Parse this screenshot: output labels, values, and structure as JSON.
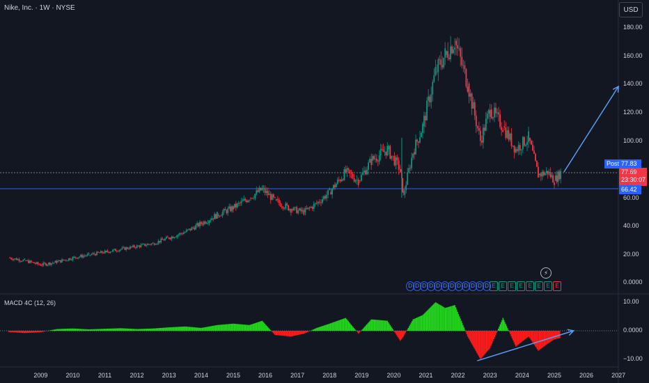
{
  "header": {
    "title": "Nike, Inc. · 1W · NYSE",
    "currency": "USD"
  },
  "price_tags": {
    "post_label": "Post",
    "post_value": "77.83",
    "last_value": "77.69",
    "last_countdown": "23:30:07",
    "level_value": "66.42"
  },
  "macd": {
    "title": "MACD 4C (12, 26)"
  },
  "events": {
    "dividend_glyph": "D",
    "earnings_glyph": "E",
    "bolt_glyph": "⚡",
    "dividend_count": 12,
    "earnings_count": 8
  },
  "colors": {
    "background": "#131722",
    "up": "#089981",
    "down": "#f23645",
    "accent": "#2962ff",
    "macd_up": "#22d31c",
    "macd_down": "#ff1a1a",
    "arrow": "#5b9cf6"
  },
  "chart_data": [
    {
      "type": "candlestick",
      "title": "Nike, Inc. · 1W · NYSE",
      "x_ticks": [
        "2009",
        "2010",
        "2011",
        "2012",
        "2013",
        "2014",
        "2015",
        "2016",
        "2017",
        "2018",
        "2019",
        "2020",
        "2021",
        "2022",
        "2023",
        "2024",
        "2025",
        "2026",
        "2027"
      ],
      "y_ticks": [
        "180.00",
        "160.00",
        "140.00",
        "120.00",
        "100.00",
        "60.00",
        "40.00",
        "20.00",
        "0.0000"
      ],
      "ylim": [
        0,
        190
      ],
      "x": [
        2008.0,
        2008.5,
        2009.0,
        2009.5,
        2010.0,
        2010.5,
        2011.0,
        2011.5,
        2012.0,
        2012.5,
        2013.0,
        2013.5,
        2014.0,
        2014.5,
        2015.0,
        2015.5,
        2015.9,
        2016.3,
        2016.8,
        2017.2,
        2017.6,
        2018.0,
        2018.5,
        2018.9,
        2019.3,
        2019.8,
        2020.2,
        2020.3,
        2020.6,
        2020.9,
        2021.3,
        2021.6,
        2021.9,
        2022.3,
        2022.7,
        2023.0,
        2023.4,
        2023.8,
        2024.2,
        2024.5,
        2024.8,
        2025.0,
        2025.2
      ],
      "close": [
        18,
        16,
        13,
        15,
        18,
        20,
        22,
        24,
        26,
        28,
        32,
        36,
        42,
        48,
        53,
        60,
        66,
        58,
        52,
        50,
        56,
        64,
        78,
        72,
        86,
        94,
        80,
        62,
        92,
        110,
        148,
        160,
        170,
        140,
        100,
        122,
        110,
        94,
        102,
        76,
        78,
        72,
        77.69
      ],
      "hlines": [
        77.83,
        66.42
      ],
      "annotation": {
        "type": "arrow",
        "from": [
          2025.3,
          78
        ],
        "to": [
          2027.0,
          138
        ]
      }
    },
    {
      "type": "bar",
      "title": "MACD 4C (12, 26)",
      "y_ticks": [
        "10.00",
        "0.0000",
        "−10.00"
      ],
      "ylim": [
        -11,
        11
      ],
      "x": [
        2008.0,
        2008.5,
        2009.0,
        2009.5,
        2010.0,
        2010.5,
        2011.0,
        2011.5,
        2012.0,
        2012.5,
        2013.0,
        2013.5,
        2014.0,
        2014.5,
        2015.0,
        2015.5,
        2015.9,
        2016.3,
        2016.8,
        2017.2,
        2017.6,
        2018.0,
        2018.5,
        2018.9,
        2019.3,
        2019.8,
        2020.2,
        2020.3,
        2020.6,
        2020.9,
        2021.3,
        2021.6,
        2021.9,
        2022.3,
        2022.7,
        2023.0,
        2023.4,
        2023.8,
        2024.2,
        2024.5,
        2024.8,
        2025.0,
        2025.2
      ],
      "values": [
        -0.4,
        -0.8,
        -0.5,
        0.6,
        0.8,
        0.5,
        0.7,
        0.9,
        0.6,
        0.8,
        1.2,
        1.5,
        1.0,
        2.0,
        2.5,
        2.0,
        3.5,
        -1.5,
        -2.0,
        -1.0,
        1.0,
        2.5,
        4.5,
        -1.0,
        4.0,
        3.5,
        -3.5,
        -2.0,
        4.0,
        5.5,
        10.0,
        8.0,
        9.0,
        -2.0,
        -10.0,
        -6.0,
        4.5,
        -5.5,
        -2.0,
        -7.0,
        -4.5,
        -3.0,
        -2.5
      ],
      "annotation": {
        "type": "arrow",
        "from": [
          2022.6,
          -10.5
        ],
        "to": [
          2025.6,
          0
        ]
      }
    }
  ]
}
